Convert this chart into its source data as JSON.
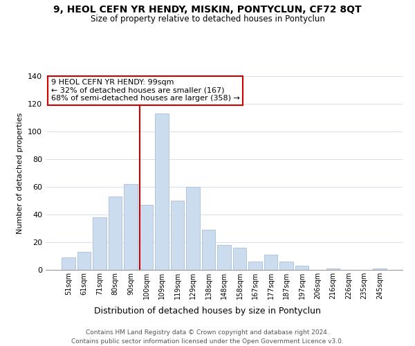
{
  "title": "9, HEOL CEFN YR HENDY, MISKIN, PONTYCLUN, CF72 8QT",
  "subtitle": "Size of property relative to detached houses in Pontyclun",
  "xlabel": "Distribution of detached houses by size in Pontyclun",
  "ylabel": "Number of detached properties",
  "bar_labels": [
    "51sqm",
    "61sqm",
    "71sqm",
    "80sqm",
    "90sqm",
    "100sqm",
    "109sqm",
    "119sqm",
    "129sqm",
    "138sqm",
    "148sqm",
    "158sqm",
    "167sqm",
    "177sqm",
    "187sqm",
    "197sqm",
    "206sqm",
    "216sqm",
    "226sqm",
    "235sqm",
    "245sqm"
  ],
  "bar_heights": [
    9,
    13,
    38,
    53,
    62,
    47,
    113,
    50,
    60,
    29,
    18,
    16,
    6,
    11,
    6,
    3,
    0,
    1,
    0,
    0,
    1
  ],
  "bar_color": "#ccdcef",
  "bar_edge_color": "#b0c4de",
  "vline_x_index": 5,
  "vline_color": "#cc0000",
  "annotation_title": "9 HEOL CEFN YR HENDY: 99sqm",
  "annotation_line1": "← 32% of detached houses are smaller (167)",
  "annotation_line2": "68% of semi-detached houses are larger (358) →",
  "annotation_box_color": "#ffffff",
  "annotation_box_edge": "#cc0000",
  "ylim": [
    0,
    140
  ],
  "yticks": [
    0,
    20,
    40,
    60,
    80,
    100,
    120,
    140
  ],
  "footer1": "Contains HM Land Registry data © Crown copyright and database right 2024.",
  "footer2": "Contains public sector information licensed under the Open Government Licence v3.0."
}
